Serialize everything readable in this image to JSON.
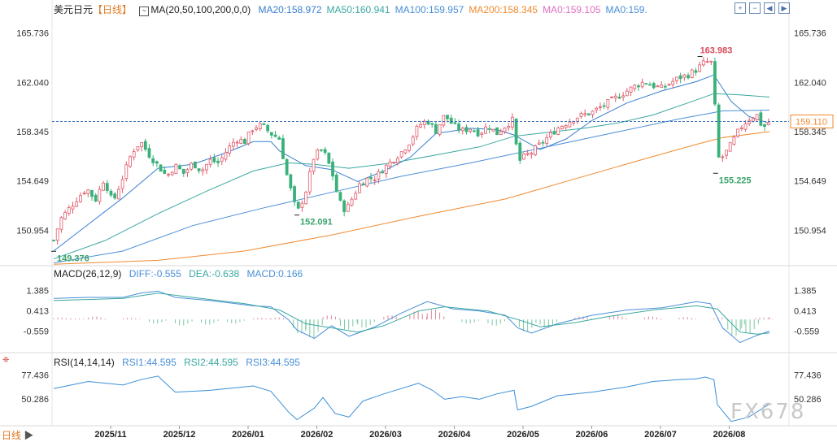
{
  "header": {
    "symbol": "美元日元",
    "timeframe": "【日线】",
    "ma_params": "MA(20,50,100,200,0,0)",
    "ma_values": [
      {
        "text": "MA20:158.972",
        "color": "#3a7fd0"
      },
      {
        "text": "MA50:160.941",
        "color": "#3aa8a0"
      },
      {
        "text": "MA100:159.957",
        "color": "#4a8fd8"
      },
      {
        "text": "MA200:158.345",
        "color": "#f08a30"
      },
      {
        "text": "MA0:159.105",
        "color": "#e070c0"
      },
      {
        "text": "MA0:159.",
        "color": "#4a8fd8"
      }
    ]
  },
  "macd_header": {
    "params": "MACD(26,12,9)",
    "diff": "DIFF:-0.555",
    "dea": "DEA:-0.638",
    "macd": "MACD:0.166"
  },
  "rsi_header": {
    "params": "RSI(14,14,14)",
    "rsi1": "RSI1:44.595",
    "rsi2": "RSI2:44.595",
    "rsi3": "RSI3:44.595"
  },
  "footer": {
    "timeframe": "日线",
    "watermark": "FX678"
  },
  "icons": [
    "zoom-in-icon",
    "zoom-out-icon",
    "scroll-left-icon",
    "scroll-right-icon"
  ],
  "chart_data": [
    {
      "type": "candlestick",
      "title": "",
      "yticks": [
        "165.736",
        "162.040",
        "158.345",
        "154.649",
        "150.954"
      ],
      "ylim": [
        148.6,
        167.0
      ],
      "current_price": "159.110",
      "annotations": [
        {
          "text": "163.983",
          "x_date": "2026-07-24",
          "value": 163.983,
          "color": "#d94a5a"
        },
        {
          "text": "155.225",
          "x_date": "2026-07-30",
          "value": 155.225,
          "color": "#3aa36b"
        },
        {
          "text": "152.091",
          "x_date": "2026-01-23",
          "value": 152.091,
          "color": "#3aa36b"
        },
        {
          "text": "149.376",
          "x_date": "2025-10-01",
          "value": 149.376,
          "color": "#3aa36b"
        }
      ],
      "xticks": [
        "2025/11",
        "2025/12",
        "2026/01",
        "2026/02",
        "2026/03",
        "2026/04",
        "2026/05",
        "2026/06",
        "2026/07",
        "2026/08"
      ],
      "close_path": [
        [
          0,
          150.2
        ],
        [
          4,
          151.8
        ],
        [
          9,
          152.6
        ],
        [
          14,
          153.4
        ],
        [
          19,
          154.1
        ],
        [
          24,
          153.2
        ],
        [
          29,
          154.8
        ],
        [
          34,
          153.0
        ],
        [
          40,
          155.0
        ],
        [
          45,
          156.8
        ],
        [
          50,
          157.6
        ],
        [
          55,
          156.6
        ],
        [
          60,
          155.8
        ],
        [
          65,
          155.0
        ],
        [
          70,
          155.8
        ],
        [
          75,
          155.2
        ],
        [
          80,
          156.0
        ],
        [
          85,
          155.4
        ],
        [
          90,
          156.2
        ],
        [
          95,
          156.0
        ],
        [
          100,
          157.0
        ],
        [
          105,
          157.8
        ],
        [
          110,
          157.6
        ],
        [
          115,
          158.7
        ],
        [
          120,
          158.8
        ],
        [
          125,
          158.2
        ],
        [
          130,
          157.8
        ],
        [
          134,
          155.2
        ],
        [
          138,
          153.2
        ],
        [
          140,
          152.2
        ],
        [
          145,
          153.8
        ],
        [
          150,
          156.6
        ],
        [
          155,
          157.0
        ],
        [
          160,
          155.4
        ],
        [
          164,
          153.2
        ],
        [
          168,
          152.4
        ],
        [
          172,
          153.4
        ],
        [
          176,
          154.4
        ],
        [
          180,
          154.8
        ],
        [
          185,
          154.9
        ],
        [
          190,
          155.6
        ],
        [
          195,
          156.2
        ],
        [
          200,
          156.8
        ],
        [
          205,
          157.6
        ],
        [
          210,
          158.8
        ],
        [
          215,
          159.2
        ],
        [
          220,
          158.4
        ],
        [
          225,
          159.6
        ],
        [
          230,
          158.8
        ],
        [
          235,
          158.4
        ],
        [
          240,
          158.6
        ],
        [
          245,
          158.2
        ],
        [
          250,
          158.8
        ],
        [
          255,
          158.2
        ],
        [
          260,
          158.8
        ],
        [
          265,
          159.3
        ],
        [
          267,
          156.0
        ],
        [
          270,
          156.4
        ],
        [
          275,
          156.8
        ],
        [
          280,
          157.4
        ],
        [
          285,
          158.0
        ],
        [
          290,
          158.6
        ],
        [
          295,
          159.0
        ],
        [
          300,
          159.4
        ],
        [
          305,
          159.6
        ],
        [
          310,
          159.8
        ],
        [
          315,
          160.2
        ],
        [
          320,
          160.6
        ],
        [
          325,
          161.0
        ],
        [
          330,
          161.4
        ],
        [
          335,
          161.8
        ],
        [
          340,
          162.1
        ],
        [
          345,
          161.8
        ],
        [
          350,
          161.6
        ],
        [
          355,
          162.0
        ],
        [
          360,
          162.4
        ],
        [
          365,
          162.6
        ],
        [
          370,
          163.0
        ],
        [
          375,
          163.6
        ],
        [
          380,
          163.5
        ],
        [
          381,
          158.0
        ],
        [
          383,
          156.2
        ],
        [
          386,
          156.6
        ],
        [
          390,
          157.4
        ],
        [
          395,
          158.6
        ],
        [
          400,
          159.3
        ],
        [
          405,
          159.6
        ],
        [
          408,
          158.6
        ],
        [
          412,
          159.1
        ]
      ],
      "series": [
        {
          "name": "MA20",
          "color": "#3a7fd0",
          "points": [
            [
              0,
              149.4
            ],
            [
              20,
              151.4
            ],
            [
              40,
              153.4
            ],
            [
              60,
              155.6
            ],
            [
              80,
              155.9
            ],
            [
              100,
              156.8
            ],
            [
              115,
              157.6
            ],
            [
              125,
              157.6
            ],
            [
              130,
              156.9
            ],
            [
              145,
              155.8
            ],
            [
              160,
              155.5
            ],
            [
              175,
              154.6
            ],
            [
              190,
              155.4
            ],
            [
              205,
              156.4
            ],
            [
              220,
              158.2
            ],
            [
              240,
              158.6
            ],
            [
              255,
              158.5
            ],
            [
              265,
              158.1
            ],
            [
              280,
              157.0
            ],
            [
              295,
              157.8
            ],
            [
              310,
              159.2
            ],
            [
              330,
              160.5
            ],
            [
              350,
              161.4
            ],
            [
              370,
              162.1
            ],
            [
              380,
              162.6
            ],
            [
              390,
              160.6
            ],
            [
              400,
              159.5
            ],
            [
              412,
              158.97
            ]
          ]
        },
        {
          "name": "MA50",
          "color": "#3aa8a0",
          "points": [
            [
              0,
              148.8
            ],
            [
              30,
              150.2
            ],
            [
              60,
              152.2
            ],
            [
              90,
              154.0
            ],
            [
              115,
              155.4
            ],
            [
              135,
              156.0
            ],
            [
              150,
              155.9
            ],
            [
              170,
              155.6
            ],
            [
              195,
              156.0
            ],
            [
              220,
              156.6
            ],
            [
              245,
              157.2
            ],
            [
              265,
              158.0
            ],
            [
              285,
              158.3
            ],
            [
              305,
              158.6
            ],
            [
              325,
              159.0
            ],
            [
              345,
              159.6
            ],
            [
              365,
              160.5
            ],
            [
              380,
              161.2
            ],
            [
              395,
              161.1
            ],
            [
              412,
              160.94
            ]
          ]
        },
        {
          "name": "MA100",
          "color": "#4a8fd8",
          "points": [
            [
              0,
              148.5
            ],
            [
              40,
              149.4
            ],
            [
              80,
              151.3
            ],
            [
              120,
              152.6
            ],
            [
              160,
              153.8
            ],
            [
              200,
              155.0
            ],
            [
              240,
              156.0
            ],
            [
              280,
              157.1
            ],
            [
              320,
              158.2
            ],
            [
              360,
              159.3
            ],
            [
              385,
              159.9
            ],
            [
              412,
              159.96
            ]
          ]
        },
        {
          "name": "MA200",
          "color": "#f08a30",
          "points": [
            [
              0,
              148.4
            ],
            [
              60,
              148.7
            ],
            [
              110,
              149.4
            ],
            [
              160,
              150.6
            ],
            [
              210,
              152.0
            ],
            [
              260,
              153.3
            ],
            [
              300,
              154.8
            ],
            [
              340,
              156.3
            ],
            [
              370,
              157.4
            ],
            [
              385,
              157.9
            ],
            [
              412,
              158.35
            ]
          ]
        }
      ]
    },
    {
      "type": "macd",
      "yticks": [
        "1.385",
        "0.413",
        "-0.559"
      ],
      "ylim": [
        -1.5,
        1.9
      ],
      "diff_points": [
        [
          0,
          1.0
        ],
        [
          20,
          1.05
        ],
        [
          40,
          1.05
        ],
        [
          50,
          1.25
        ],
        [
          60,
          1.35
        ],
        [
          70,
          1.05
        ],
        [
          90,
          0.9
        ],
        [
          115,
          0.65
        ],
        [
          125,
          0.6
        ],
        [
          135,
          0.0
        ],
        [
          140,
          -0.5
        ],
        [
          150,
          -0.9
        ],
        [
          160,
          -0.3
        ],
        [
          170,
          -0.8
        ],
        [
          185,
          -0.35
        ],
        [
          200,
          0.3
        ],
        [
          215,
          0.85
        ],
        [
          230,
          0.5
        ],
        [
          245,
          0.4
        ],
        [
          260,
          0.2
        ],
        [
          267,
          -0.4
        ],
        [
          275,
          -0.65
        ],
        [
          290,
          -0.2
        ],
        [
          310,
          0.2
        ],
        [
          330,
          0.45
        ],
        [
          350,
          0.55
        ],
        [
          370,
          0.85
        ],
        [
          378,
          0.75
        ],
        [
          385,
          -0.4
        ],
        [
          395,
          -1.1
        ],
        [
          405,
          -0.75
        ],
        [
          412,
          -0.555
        ]
      ],
      "dea_points": [
        [
          0,
          0.9
        ],
        [
          40,
          1.0
        ],
        [
          60,
          1.25
        ],
        [
          80,
          1.05
        ],
        [
          110,
          0.75
        ],
        [
          130,
          0.45
        ],
        [
          145,
          -0.2
        ],
        [
          160,
          -0.4
        ],
        [
          175,
          -0.6
        ],
        [
          190,
          -0.3
        ],
        [
          210,
          0.4
        ],
        [
          225,
          0.6
        ],
        [
          250,
          0.4
        ],
        [
          267,
          0.0
        ],
        [
          280,
          -0.35
        ],
        [
          300,
          -0.15
        ],
        [
          320,
          0.15
        ],
        [
          345,
          0.45
        ],
        [
          370,
          0.65
        ],
        [
          382,
          0.5
        ],
        [
          395,
          -0.6
        ],
        [
          405,
          -0.7
        ],
        [
          412,
          -0.638
        ]
      ],
      "histogram": [
        {
          "x": 0,
          "value": 0.1
        },
        {
          "x": 10,
          "value": 0.05
        },
        {
          "x": 20,
          "value": 0.15
        },
        {
          "x": 40,
          "value": 0.08
        },
        {
          "x": 55,
          "value": -0.2
        },
        {
          "x": 70,
          "value": -0.3
        },
        {
          "x": 85,
          "value": -0.25
        },
        {
          "x": 100,
          "value": -0.2
        },
        {
          "x": 115,
          "value": 0.08
        },
        {
          "x": 125,
          "value": 0.1
        },
        {
          "x": 138,
          "value": -0.7
        },
        {
          "x": 145,
          "value": -0.9
        },
        {
          "x": 155,
          "value": 0.2
        },
        {
          "x": 165,
          "value": -0.5
        },
        {
          "x": 175,
          "value": -0.4
        },
        {
          "x": 190,
          "value": 0.2
        },
        {
          "x": 205,
          "value": 0.4
        },
        {
          "x": 215,
          "value": 0.5
        },
        {
          "x": 235,
          "value": -0.2
        },
        {
          "x": 250,
          "value": -0.3
        },
        {
          "x": 268,
          "value": -0.6
        },
        {
          "x": 280,
          "value": -0.4
        },
        {
          "x": 300,
          "value": 0.15
        },
        {
          "x": 320,
          "value": 0.2
        },
        {
          "x": 340,
          "value": 0.15
        },
        {
          "x": 360,
          "value": 0.12
        },
        {
          "x": 380,
          "value": 0.1
        },
        {
          "x": 388,
          "value": -0.8
        },
        {
          "x": 396,
          "value": -0.7
        },
        {
          "x": 404,
          "value": 0.1
        },
        {
          "x": 412,
          "value": 0.17
        }
      ]
    },
    {
      "type": "rsi",
      "yticks": [
        "77.436",
        "50.286"
      ],
      "ylim": [
        22,
        86
      ],
      "points": [
        [
          0,
          62
        ],
        [
          10,
          66
        ],
        [
          20,
          70
        ],
        [
          40,
          66
        ],
        [
          50,
          72
        ],
        [
          60,
          76
        ],
        [
          70,
          58
        ],
        [
          90,
          60
        ],
        [
          115,
          65
        ],
        [
          125,
          59
        ],
        [
          135,
          36
        ],
        [
          140,
          27
        ],
        [
          150,
          40
        ],
        [
          155,
          52
        ],
        [
          162,
          34
        ],
        [
          170,
          30
        ],
        [
          178,
          48
        ],
        [
          190,
          56
        ],
        [
          210,
          68
        ],
        [
          218,
          60
        ],
        [
          225,
          50
        ],
        [
          235,
          53
        ],
        [
          245,
          50
        ],
        [
          255,
          56
        ],
        [
          265,
          60
        ],
        [
          267,
          38
        ],
        [
          275,
          42
        ],
        [
          290,
          54
        ],
        [
          310,
          58
        ],
        [
          330,
          64
        ],
        [
          345,
          70
        ],
        [
          360,
          72
        ],
        [
          370,
          73
        ],
        [
          375,
          75
        ],
        [
          380,
          72
        ],
        [
          382,
          44
        ],
        [
          390,
          25
        ],
        [
          400,
          30
        ],
        [
          405,
          36
        ],
        [
          412,
          44.595
        ]
      ]
    }
  ]
}
